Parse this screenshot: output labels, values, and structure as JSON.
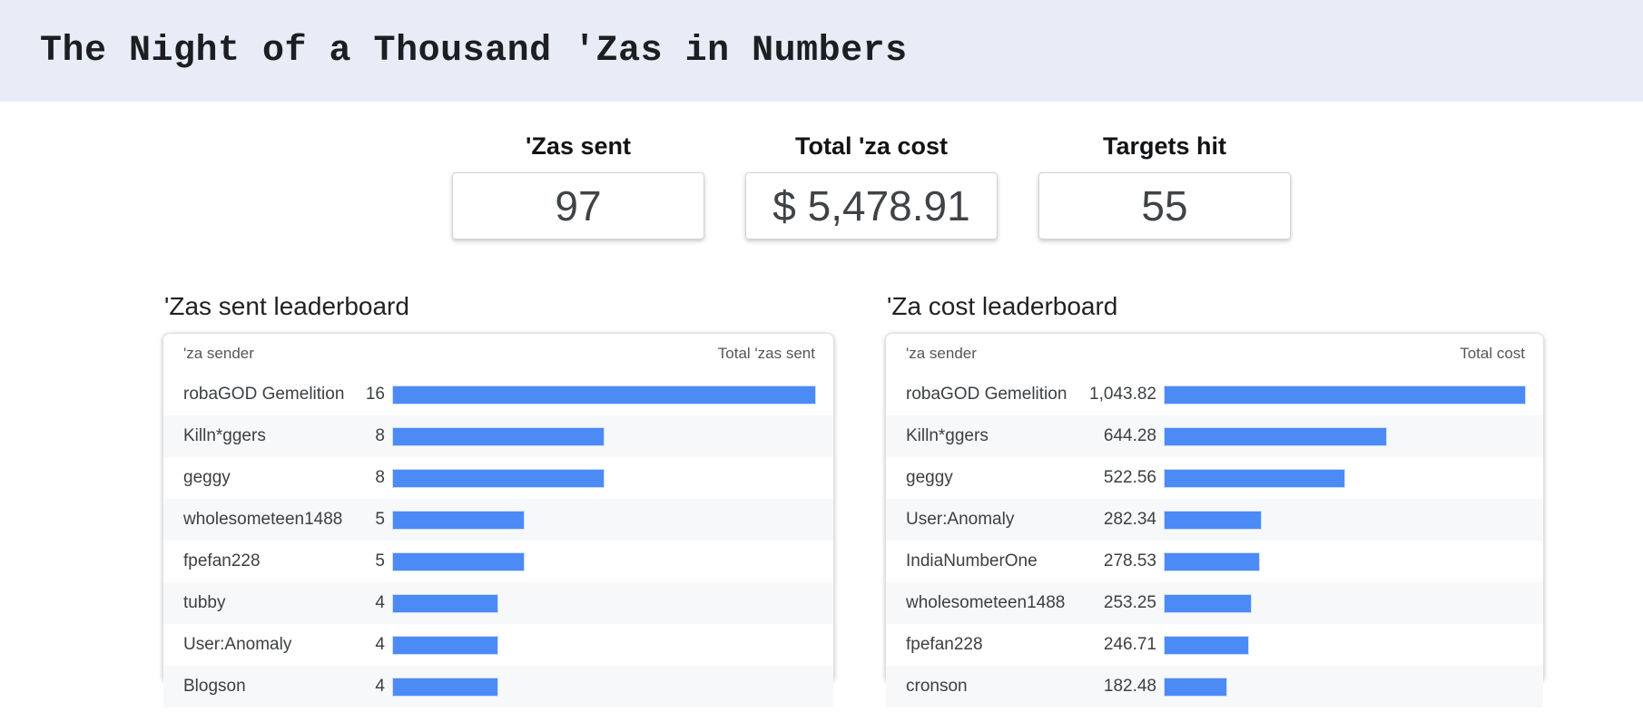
{
  "header": {
    "title": "The Night of a Thousand 'Zas in Numbers",
    "background_color": "#e8ecf6"
  },
  "stats": [
    {
      "label": "'Zas sent",
      "value": "97"
    },
    {
      "label": "Total 'za cost",
      "value": "$ 5,478.91"
    },
    {
      "label": "Targets hit",
      "value": "55"
    }
  ],
  "colors": {
    "bar": "#4c8bf5",
    "alt_row": "#f7f8fa",
    "header_band": "#e8ecf6"
  },
  "leaderboards": [
    {
      "title": "'Zas sent leaderboard",
      "columns": [
        "'za sender",
        "Total 'zas sent"
      ],
      "max_value": 16,
      "rows": [
        {
          "name": "robaGOD Gemelition",
          "value": 16,
          "display": "16"
        },
        {
          "name": "Killn*ggers",
          "value": 8,
          "display": "8"
        },
        {
          "name": "geggy",
          "value": 8,
          "display": "8"
        },
        {
          "name": "wholesometeen1488",
          "value": 5,
          "display": "5"
        },
        {
          "name": "fpefan228",
          "value": 5,
          "display": "5"
        },
        {
          "name": "tubby",
          "value": 4,
          "display": "4"
        },
        {
          "name": "User:Anomaly",
          "value": 4,
          "display": "4"
        },
        {
          "name": "Blogson",
          "value": 4,
          "display": "4"
        }
      ]
    },
    {
      "title": "'Za cost leaderboard",
      "columns": [
        "'za sender",
        "Total cost"
      ],
      "max_value": 1043.82,
      "rows": [
        {
          "name": "robaGOD Gemelition",
          "value": 1043.82,
          "display": "1,043.82"
        },
        {
          "name": "Killn*ggers",
          "value": 644.28,
          "display": "644.28"
        },
        {
          "name": "geggy",
          "value": 522.56,
          "display": "522.56"
        },
        {
          "name": "User:Anomaly",
          "value": 282.34,
          "display": "282.34"
        },
        {
          "name": "IndiaNumberOne",
          "value": 278.53,
          "display": "278.53"
        },
        {
          "name": "wholesometeen1488",
          "value": 253.25,
          "display": "253.25"
        },
        {
          "name": "fpefan228",
          "value": 246.71,
          "display": "246.71"
        },
        {
          "name": "cronson",
          "value": 182.48,
          "display": "182.48"
        }
      ]
    }
  ],
  "chart_data": [
    {
      "type": "bar",
      "title": "'Zas sent leaderboard",
      "categories": [
        "robaGOD Gemelition",
        "Killn*ggers",
        "geggy",
        "wholesometeen1488",
        "fpefan228",
        "tubby",
        "User:Anomaly",
        "Blogson"
      ],
      "values": [
        16,
        8,
        8,
        5,
        5,
        4,
        4,
        4
      ],
      "xlabel": "Total 'zas sent",
      "ylabel": "'za sender",
      "xlim": [
        0,
        16
      ],
      "orientation": "horizontal",
      "grid": false
    },
    {
      "type": "bar",
      "title": "'Za cost leaderboard",
      "categories": [
        "robaGOD Gemelition",
        "Killn*ggers",
        "geggy",
        "User:Anomaly",
        "IndiaNumberOne",
        "wholesometeen1488",
        "fpefan228",
        "cronson"
      ],
      "values": [
        1043.82,
        644.28,
        522.56,
        282.34,
        278.53,
        253.25,
        246.71,
        182.48
      ],
      "xlabel": "Total cost",
      "ylabel": "'za sender",
      "xlim": [
        0,
        1043.82
      ],
      "orientation": "horizontal",
      "grid": false
    }
  ]
}
